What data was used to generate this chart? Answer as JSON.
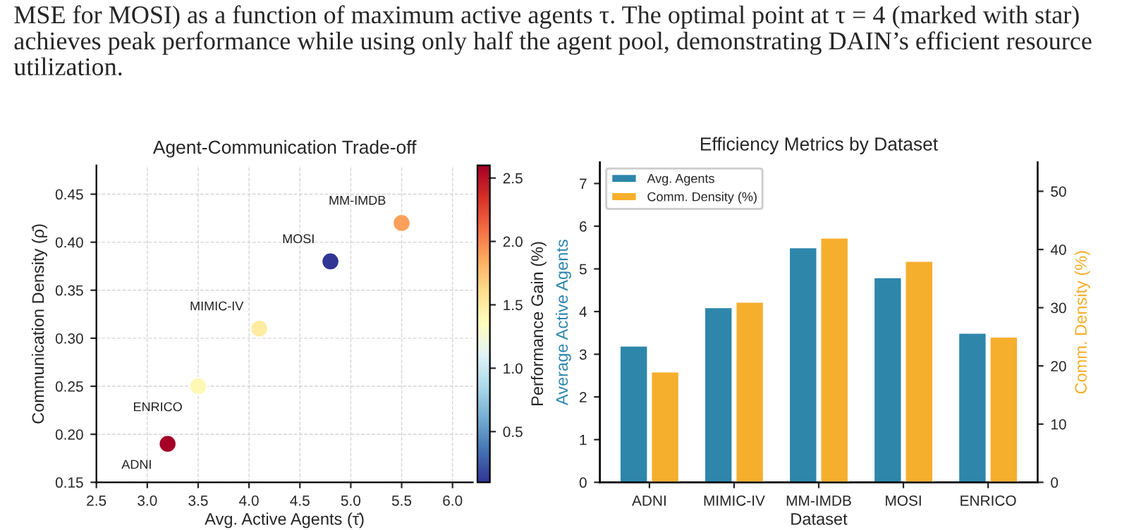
{
  "chart_data": [
    {
      "type": "scatter",
      "title": "Agent-Communication Trade-off",
      "xlabel": "Avg. Active Agents (τ̄)",
      "ylabel": "Communication Density (ρ̄)",
      "clabel": "Performance Gain (%)",
      "x": [
        3.2,
        3.5,
        4.1,
        4.8,
        5.5
      ],
      "values": [
        0.19,
        0.25,
        0.31,
        0.38,
        0.42
      ],
      "cvalues": [
        2.6,
        1.4,
        1.5,
        0.1,
        1.9
      ],
      "clim": [
        0.1,
        2.6
      ],
      "cticks": [
        0.5,
        {
          "value": 1,
          "label": "1.0"
        },
        1.5,
        {
          "value": 2,
          "label": "2.0"
        },
        2.5
      ],
      "xlim": [
        2.5,
        6.2
      ],
      "ylim": [
        0.15,
        0.48
      ],
      "xticks": [
        2.5,
        {
          "value": 3,
          "label": "3.0"
        },
        3.5,
        {
          "value": 4,
          "label": "4.0"
        },
        4.5,
        {
          "value": 5,
          "label": "5.0"
        },
        5.5,
        {
          "value": 6,
          "label": "6.0"
        }
      ],
      "yticks": [
        0.15,
        {
          "value": 0.2,
          "label": "0.20"
        },
        0.25,
        {
          "value": 0.3,
          "label": "0.30"
        },
        0.35,
        {
          "value": 0.4,
          "label": "0.40"
        },
        0.45
      ],
      "grid": true,
      "marker": "circle",
      "annotations": [
        {
          "text": "ADNI",
          "x": 3.2,
          "y": 0.19
        },
        {
          "text": "ENRICO",
          "x": 3.5,
          "y": 0.25
        },
        {
          "text": "MIMIC-IV",
          "x": 4.1,
          "y": 0.31
        },
        {
          "text": "MOSI",
          "x": 4.8,
          "y": 0.38
        },
        {
          "text": "MM-IMDB",
          "x": 5.5,
          "y": 0.42
        },
        "MSE for MOSI) as a function of maximum active agents τ. The optimal point at τ = 4 (marked with star) achieves peak performance while using only half the agent pool, demonstrating DAIN’s efficient resource utilization."
      ]
    },
    {
      "type": "bar",
      "title": "Efficiency Metrics by Dataset",
      "xlabel": "Dataset",
      "ylabel": "Average Active Agents",
      "y2label": "Comm. Density (%)",
      "categories": [
        "ADNI",
        "MIMIC-IV",
        "MM-IMDB",
        "MOSI",
        "ENRICO"
      ],
      "series": [
        {
          "name": "Avg. Agents",
          "color": "#2e86ab",
          "values": [
            3.2,
            4.1,
            5.5,
            4.8,
            3.5
          ]
        },
        {
          "name": "Comm. Density (%)",
          "color": "#f6ae2d",
          "axis": "y2",
          "values": [
            19,
            31,
            42,
            38,
            25
          ]
        }
      ],
      "ylim": [
        0,
        7.5
      ],
      "yticks": [
        0,
        1,
        2,
        3,
        4,
        5,
        6,
        7
      ],
      "y2lim": [
        0,
        55
      ],
      "y2ticks": [
        0,
        10,
        20,
        30,
        40,
        50
      ],
      "legend": "top left"
    }
  ]
}
